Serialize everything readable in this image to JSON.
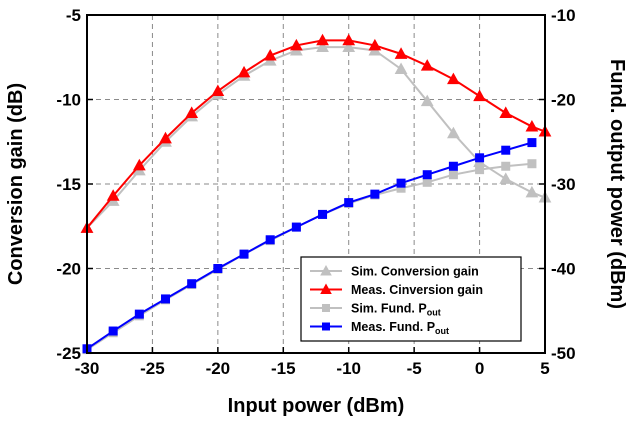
{
  "chart_data": {
    "type": "line",
    "xlabel": "Input power (dBm)",
    "ylabel": "Conversion gain (dB)",
    "y2label": "Fund. output power (dBm)",
    "xlim": [
      -30,
      5
    ],
    "ylim": [
      -25,
      -5
    ],
    "y2lim": [
      -50,
      -10
    ],
    "xticks": [
      -30,
      -25,
      -20,
      -15,
      -10,
      -5,
      0,
      5
    ],
    "yticks": [
      -5,
      -10,
      -15,
      -20,
      -25
    ],
    "y2ticks": [
      -10,
      -20,
      -30,
      -40,
      -50
    ],
    "grid": true,
    "legend_position": "bottom-right",
    "series": [
      {
        "name": "Sim. Conversion gain",
        "axis": "left",
        "marker": "triangle",
        "color": "#c0c0c0",
        "x": [
          -30,
          -28,
          -26,
          -24,
          -22,
          -20,
          -18,
          -16,
          -14,
          -12,
          -10,
          -8,
          -6,
          -4,
          -2,
          0,
          2,
          4,
          5
        ],
        "values": [
          -17.6,
          -16.0,
          -14.2,
          -12.5,
          -11.0,
          -9.7,
          -8.6,
          -7.7,
          -7.1,
          -6.9,
          -6.9,
          -7.1,
          -8.2,
          -10.1,
          -12.0,
          -13.7,
          -14.7,
          -15.5,
          -15.8
        ]
      },
      {
        "name": "Meas. Cinversion gain",
        "axis": "left",
        "marker": "triangle",
        "color": "#ff0000",
        "x": [
          -30,
          -28,
          -26,
          -24,
          -22,
          -20,
          -18,
          -16,
          -14,
          -12,
          -10,
          -8,
          -6,
          -4,
          -2,
          0,
          2,
          4,
          5
        ],
        "values": [
          -17.6,
          -15.7,
          -13.9,
          -12.3,
          -10.8,
          -9.5,
          -8.4,
          -7.4,
          -6.8,
          -6.5,
          -6.5,
          -6.8,
          -7.3,
          -8.0,
          -8.8,
          -9.8,
          -10.8,
          -11.6,
          -11.9
        ]
      },
      {
        "name": "Sim. Fund. Pout",
        "axis": "right",
        "marker": "square",
        "color": "#c0c0c0",
        "x": [
          -30,
          -28,
          -26,
          -24,
          -22,
          -20,
          -18,
          -16,
          -14,
          -12,
          -10,
          -8,
          -6,
          -4,
          -2,
          0,
          2,
          4
        ],
        "values": [
          -49.6,
          -47.6,
          -45.6,
          -43.7,
          -41.9,
          -40.1,
          -38.3,
          -36.7,
          -35.1,
          -33.6,
          -32.3,
          -31.3,
          -30.5,
          -29.8,
          -28.9,
          -28.3,
          -27.9,
          -27.6
        ]
      },
      {
        "name": "Meas. Fund. Pout",
        "axis": "right",
        "marker": "square",
        "color": "#0000ff",
        "x": [
          -30,
          -28,
          -26,
          -24,
          -22,
          -20,
          -18,
          -16,
          -14,
          -12,
          -10,
          -8,
          -6,
          -4,
          -2,
          0,
          2,
          4
        ],
        "values": [
          -49.5,
          -47.4,
          -45.4,
          -43.6,
          -41.8,
          -40.0,
          -38.3,
          -36.6,
          -35.1,
          -33.6,
          -32.2,
          -31.2,
          -29.9,
          -28.9,
          -27.9,
          -26.9,
          -26.0,
          -25.1
        ]
      }
    ],
    "legend_entries": [
      {
        "label": "Sim. Conversion gain",
        "sub": ""
      },
      {
        "label": "Meas. Cinversion gain",
        "sub": ""
      },
      {
        "label": "Sim. Fund. P",
        "sub": "out"
      },
      {
        "label": "Meas. Fund. P",
        "sub": "out"
      }
    ]
  }
}
